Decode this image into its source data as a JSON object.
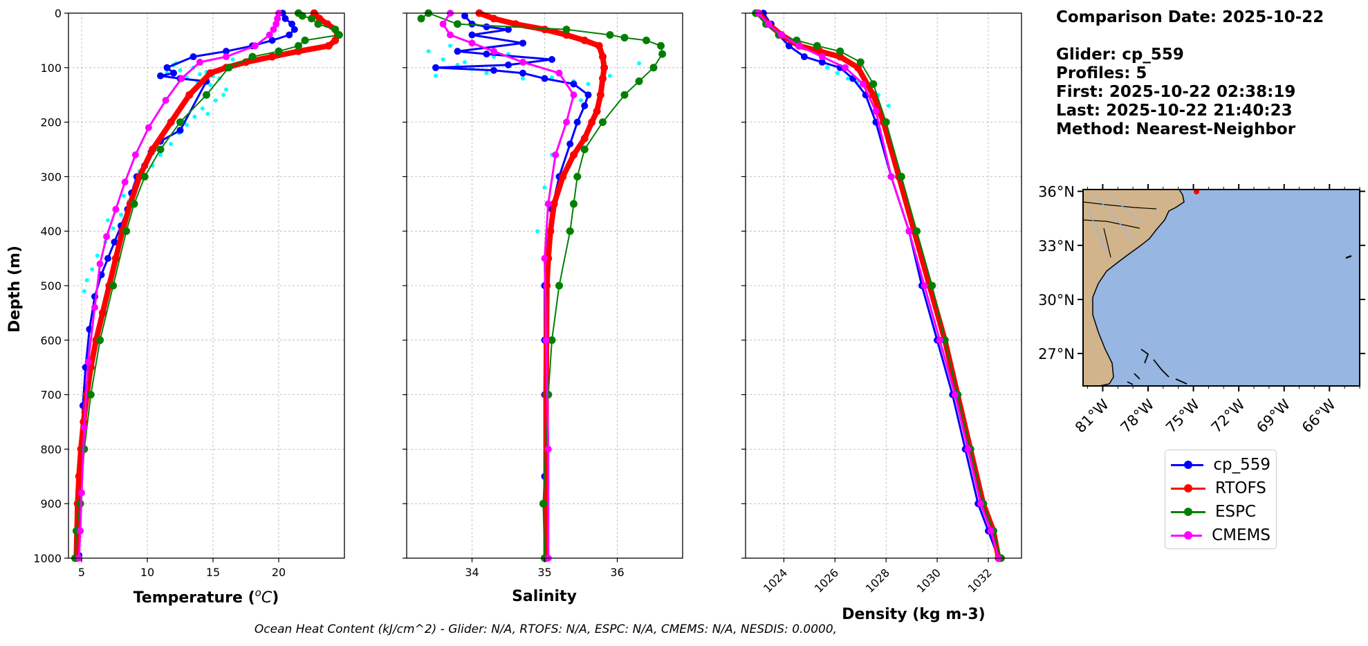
{
  "chart_data": [
    {
      "type": "line",
      "panel": "temperature",
      "xlabel": "Temperature (°C)",
      "ylabel": "Depth (m)",
      "xlim": [
        4,
        25
      ],
      "ylim": [
        1000,
        0
      ],
      "xticks": [
        5,
        10,
        15,
        20
      ],
      "yticks": [
        0,
        100,
        200,
        300,
        400,
        500,
        600,
        700,
        800,
        900,
        1000
      ],
      "grid": true,
      "cyan_points": {
        "x": [
          12.0,
          12.5,
          11.5,
          13.0,
          13.5,
          12.2,
          14.0,
          13.8,
          14.5,
          15.0,
          14.8,
          15.5,
          16.0,
          15.2,
          14.2,
          13.6,
          13.0,
          12.4,
          11.8,
          11.0,
          10.4,
          9.8,
          9.2,
          8.6,
          8.0,
          7.4,
          6.8,
          6.2,
          5.8,
          5.4,
          5.2,
          16.5,
          15.8,
          14.6,
          12.8,
          11.2,
          10.6,
          9.4,
          8.2,
          7.0
        ],
        "y": [
          95,
          105,
          110,
          118,
          100,
          92,
          112,
          125,
          108,
          116,
          132,
          120,
          140,
          160,
          175,
          190,
          205,
          220,
          240,
          260,
          280,
          300,
          320,
          345,
          370,
          395,
          420,
          445,
          470,
          490,
          510,
          85,
          150,
          185,
          200,
          230,
          250,
          290,
          335,
          380
        ]
      },
      "series": [
        {
          "name": "cp_559",
          "color": "#0000ff",
          "width": 3,
          "marker": 6,
          "x": [
            20.3,
            20.5,
            21.0,
            21.2,
            20.8,
            19.5,
            18.0,
            16.0,
            13.5,
            11.5,
            12.0,
            11.0,
            12.5,
            14.5,
            12.5,
            11.0,
            10.3,
            9.8,
            9.2,
            8.8,
            8.5,
            8.0,
            7.5,
            7.0,
            6.5,
            6.0,
            5.6,
            5.3,
            5.1,
            5.0,
            4.9,
            4.85,
            4.8
          ],
          "y": [
            0,
            10,
            20,
            30,
            40,
            50,
            60,
            70,
            80,
            100,
            110,
            115,
            120,
            125,
            215,
            235,
            255,
            280,
            300,
            330,
            360,
            390,
            420,
            450,
            480,
            520,
            580,
            650,
            720,
            800,
            880,
            950,
            995
          ]
        },
        {
          "name": "RTOFS",
          "color": "#ff0000",
          "width": 8,
          "marker": 7,
          "x": [
            22.7,
            23.1,
            23.7,
            24.3,
            24.5,
            24.3,
            23.8,
            21.5,
            19.5,
            17.5,
            16.0,
            14.8,
            13.2,
            11.8,
            10.4,
            9.4,
            8.7,
            8.1,
            7.6,
            7.1,
            6.6,
            6.1,
            5.7,
            5.4,
            5.15,
            4.95,
            4.8,
            4.7,
            4.6
          ],
          "y": [
            0,
            10,
            20,
            30,
            40,
            50,
            60,
            70,
            80,
            90,
            100,
            110,
            150,
            200,
            250,
            300,
            350,
            400,
            450,
            500,
            550,
            600,
            650,
            700,
            750,
            800,
            850,
            900,
            1000
          ]
        },
        {
          "name": "ESPC",
          "color": "#008000",
          "width": 2,
          "marker": 7,
          "x": [
            21.5,
            21.8,
            22.5,
            23.0,
            24.3,
            24.6,
            22.0,
            21.5,
            20.0,
            18.0,
            16.2,
            14.5,
            12.5,
            11.0,
            9.8,
            9.0,
            8.4,
            7.4,
            6.4,
            5.7,
            5.2,
            4.9,
            4.6,
            4.5
          ],
          "y": [
            0,
            5,
            10,
            20,
            30,
            40,
            50,
            60,
            70,
            80,
            100,
            150,
            200,
            250,
            300,
            350,
            400,
            500,
            600,
            700,
            800,
            900,
            950,
            1000
          ]
        },
        {
          "name": "CMEMS",
          "color": "#ff00ff",
          "width": 3,
          "marker": 6,
          "x": [
            20.0,
            19.9,
            19.8,
            19.6,
            19.3,
            18.2,
            16.0,
            14.0,
            12.6,
            11.4,
            10.1,
            9.1,
            8.3,
            7.6,
            6.9,
            6.4,
            6.0,
            5.5,
            5.2,
            5.0,
            4.9,
            4.8
          ],
          "y": [
            0,
            10,
            20,
            30,
            40,
            60,
            80,
            90,
            120,
            160,
            210,
            260,
            310,
            360,
            410,
            460,
            540,
            640,
            760,
            880,
            950,
            1000
          ]
        }
      ]
    },
    {
      "type": "line",
      "panel": "salinity",
      "xlabel": "Salinity",
      "xlim": [
        33.1,
        36.9
      ],
      "ylim": [
        1000,
        0
      ],
      "xticks": [
        34,
        35,
        36
      ],
      "grid": true,
      "cyan_points": {
        "x": [
          33.4,
          33.6,
          33.8,
          34.0,
          34.2,
          33.5,
          33.9,
          34.3,
          34.7,
          35.1,
          35.4,
          35.6,
          35.5,
          35.3,
          35.1,
          35.0,
          34.9,
          36.3,
          36.5,
          35.9,
          34.5,
          33.7
        ],
        "y": [
          70,
          85,
          95,
          102,
          110,
          115,
          90,
          80,
          120,
          118,
          125,
          130,
          160,
          200,
          260,
          320,
          400,
          92,
          100,
          115,
          75,
          60
        ]
      },
      "series": [
        {
          "name": "cp_559",
          "color": "#0000ff",
          "width": 3,
          "marker": 6,
          "x": [
            33.9,
            34.0,
            34.2,
            34.5,
            34.0,
            34.7,
            33.8,
            34.2,
            35.1,
            34.5,
            33.5,
            34.3,
            34.7,
            35.0,
            35.4,
            35.6,
            35.55,
            35.45,
            35.35,
            35.2,
            35.1,
            35.05,
            35.0,
            35.0,
            35.0,
            35.0,
            35.0
          ],
          "y": [
            5,
            20,
            25,
            30,
            40,
            55,
            70,
            75,
            85,
            95,
            100,
            105,
            110,
            120,
            130,
            150,
            170,
            200,
            240,
            300,
            360,
            420,
            500,
            600,
            700,
            850,
            1000
          ]
        },
        {
          "name": "RTOFS",
          "color": "#ff0000",
          "width": 8,
          "marker": 7,
          "x": [
            34.1,
            34.3,
            34.6,
            35.0,
            35.3,
            35.55,
            35.75,
            35.8,
            35.82,
            35.8,
            35.77,
            35.72,
            35.65,
            35.55,
            35.4,
            35.25,
            35.13,
            35.08,
            35.05,
            35.03,
            35.02,
            35.02
          ],
          "y": [
            0,
            10,
            20,
            30,
            40,
            50,
            60,
            80,
            100,
            120,
            150,
            180,
            200,
            230,
            260,
            300,
            350,
            400,
            450,
            500,
            700,
            1000
          ]
        },
        {
          "name": "ESPC",
          "color": "#008000",
          "width": 2,
          "marker": 7,
          "x": [
            33.3,
            33.4,
            33.8,
            35.3,
            35.9,
            36.1,
            36.4,
            36.6,
            36.62,
            36.5,
            36.3,
            36.1,
            35.8,
            35.55,
            35.45,
            35.4,
            35.35,
            35.2,
            35.1,
            35.05,
            34.98,
            35.0
          ],
          "y": [
            10,
            0,
            20,
            30,
            40,
            45,
            50,
            60,
            75,
            100,
            125,
            150,
            200,
            250,
            300,
            350,
            400,
            500,
            600,
            700,
            900,
            1000
          ]
        },
        {
          "name": "CMEMS",
          "color": "#ff00ff",
          "width": 3,
          "marker": 6,
          "x": [
            33.7,
            33.6,
            33.7,
            34.0,
            34.3,
            34.7,
            35.2,
            35.4,
            35.3,
            35.15,
            35.05,
            35.0,
            35.02,
            35.05,
            35.05
          ],
          "y": [
            0,
            20,
            40,
            55,
            70,
            90,
            110,
            150,
            200,
            260,
            350,
            450,
            600,
            800,
            1000
          ]
        }
      ]
    },
    {
      "type": "line",
      "panel": "density",
      "xlabel": "Density (kg m-3)",
      "xlim": [
        1022.5,
        1033.3
      ],
      "ylim": [
        1000,
        0
      ],
      "xticks": [
        1024,
        1026,
        1028,
        1030,
        1032
      ],
      "grid": true,
      "cyan_points": {
        "x": [
          1025.7,
          1026.1,
          1026.5,
          1026.9,
          1027.3,
          1027.7,
          1028.1
        ],
        "y": [
          100,
          110,
          120,
          125,
          130,
          150,
          170
        ]
      },
      "series": [
        {
          "name": "cp_559",
          "color": "#0000ff",
          "width": 3,
          "marker": 6,
          "x": [
            1023.2,
            1023.5,
            1023.8,
            1024.2,
            1024.8,
            1025.5,
            1026.2,
            1026.7,
            1027.2,
            1027.6,
            1028.2,
            1028.9,
            1029.4,
            1030.0,
            1030.6,
            1031.1,
            1031.6,
            1032.0,
            1032.4
          ],
          "y": [
            0,
            20,
            40,
            60,
            80,
            90,
            100,
            120,
            150,
            200,
            300,
            400,
            500,
            600,
            700,
            800,
            900,
            950,
            1000
          ]
        },
        {
          "name": "RTOFS",
          "color": "#ff0000",
          "width": 8,
          "marker": 7,
          "x": [
            1023.0,
            1023.4,
            1023.9,
            1024.6,
            1025.4,
            1026.2,
            1026.9,
            1027.5,
            1027.9,
            1028.5,
            1029.1,
            1029.7,
            1030.3,
            1030.8,
            1031.3,
            1031.8,
            1032.2,
            1032.4
          ],
          "y": [
            0,
            20,
            40,
            60,
            70,
            80,
            100,
            150,
            200,
            300,
            400,
            500,
            600,
            700,
            800,
            900,
            950,
            1000
          ]
        },
        {
          "name": "ESPC",
          "color": "#008000",
          "width": 2,
          "marker": 7,
          "x": [
            1022.9,
            1023.3,
            1023.8,
            1024.5,
            1025.3,
            1026.2,
            1027.0,
            1027.5,
            1028.0,
            1028.6,
            1029.2,
            1029.8,
            1030.3,
            1030.8,
            1031.3,
            1031.8,
            1032.2,
            1032.5
          ],
          "y": [
            0,
            20,
            40,
            50,
            60,
            70,
            90,
            130,
            200,
            300,
            400,
            500,
            600,
            700,
            800,
            900,
            950,
            1000
          ]
        },
        {
          "name": "CMEMS",
          "color": "#ff00ff",
          "width": 3,
          "marker": 6,
          "x": [
            1023.0,
            1023.4,
            1023.9,
            1024.6,
            1025.5,
            1026.4,
            1027.1,
            1027.6,
            1028.2,
            1028.9,
            1029.5,
            1030.1,
            1030.7,
            1031.2,
            1031.7,
            1032.1,
            1032.4
          ],
          "y": [
            0,
            20,
            40,
            60,
            80,
            100,
            130,
            180,
            300,
            400,
            500,
            600,
            700,
            800,
            900,
            950,
            1000
          ]
        }
      ]
    }
  ],
  "axis_titles": {
    "depth": "Depth (m)",
    "temperature": "Temperature (",
    "temperature_unit_o": "o",
    "temperature_unit_c": "C",
    "temperature_close": ")",
    "salinity": "Salinity",
    "density": "Density (kg m-3)"
  },
  "info": {
    "comparison_date": "Comparison Date: 2025-10-22",
    "glider": "Glider: cp_559",
    "profiles": "Profiles: 5",
    "first": "First: 2025-10-22 02:38:19",
    "last": "Last: 2025-10-22 21:40:23",
    "method": "Method: Nearest-Neighbor"
  },
  "map": {
    "lat_labels": [
      "36°N",
      "33°N",
      "30°N",
      "27°N"
    ],
    "lon_labels": [
      "81°W",
      "78°W",
      "75°W",
      "72°W",
      "69°W",
      "66°W"
    ],
    "land_color": "#d2b48c",
    "ocean_color": "#97b6e1",
    "glider_marker_color": "#ff0000"
  },
  "legend": [
    {
      "label": "cp_559",
      "color": "#0000ff"
    },
    {
      "label": "RTOFS",
      "color": "#ff0000"
    },
    {
      "label": "ESPC",
      "color": "#008000"
    },
    {
      "label": "CMEMS",
      "color": "#ff00ff"
    }
  ],
  "footer": "Ocean Heat Content (kJ/cm^2) - Glider: N/A,  RTOFS: N/A,  ESPC: N/A,  CMEMS: N/A,  NESDIS: 0.0000,"
}
